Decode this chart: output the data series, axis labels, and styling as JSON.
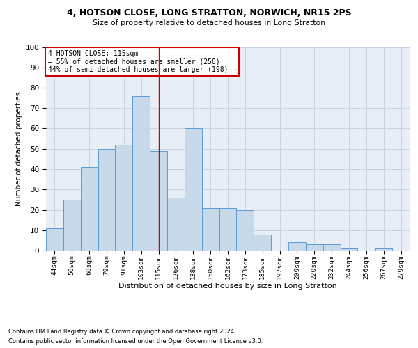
{
  "title1": "4, HOTSON CLOSE, LONG STRATTON, NORWICH, NR15 2PS",
  "title2": "Size of property relative to detached houses in Long Stratton",
  "xlabel": "Distribution of detached houses by size in Long Stratton",
  "ylabel": "Number of detached properties",
  "footnote1": "Contains HM Land Registry data © Crown copyright and database right 2024.",
  "footnote2": "Contains public sector information licensed under the Open Government Licence v3.0.",
  "annotation_line1": "4 HOTSON CLOSE: 115sqm",
  "annotation_line2": "← 55% of detached houses are smaller (250)",
  "annotation_line3": "44% of semi-detached houses are larger (198) →",
  "bar_categories": [
    "44sqm",
    "56sqm",
    "68sqm",
    "79sqm",
    "91sqm",
    "103sqm",
    "115sqm",
    "126sqm",
    "138sqm",
    "150sqm",
    "162sqm",
    "173sqm",
    "185sqm",
    "197sqm",
    "209sqm",
    "220sqm",
    "232sqm",
    "244sqm",
    "256sqm",
    "267sqm",
    "279sqm"
  ],
  "bar_values": [
    11,
    25,
    41,
    50,
    52,
    76,
    49,
    26,
    60,
    21,
    21,
    20,
    8,
    0,
    4,
    3,
    3,
    1,
    0,
    1,
    0
  ],
  "bar_color": "#c8daea",
  "bar_edge_color": "#5b9bd5",
  "highlight_bar_index": 6,
  "vline_color": "#cc0000",
  "annotation_box_color": "#cc0000",
  "grid_color": "#c8d4e4",
  "bg_color": "#e8eef6",
  "ylim": [
    0,
    100
  ],
  "yticks": [
    0,
    10,
    20,
    30,
    40,
    50,
    60,
    70,
    80,
    90,
    100
  ]
}
